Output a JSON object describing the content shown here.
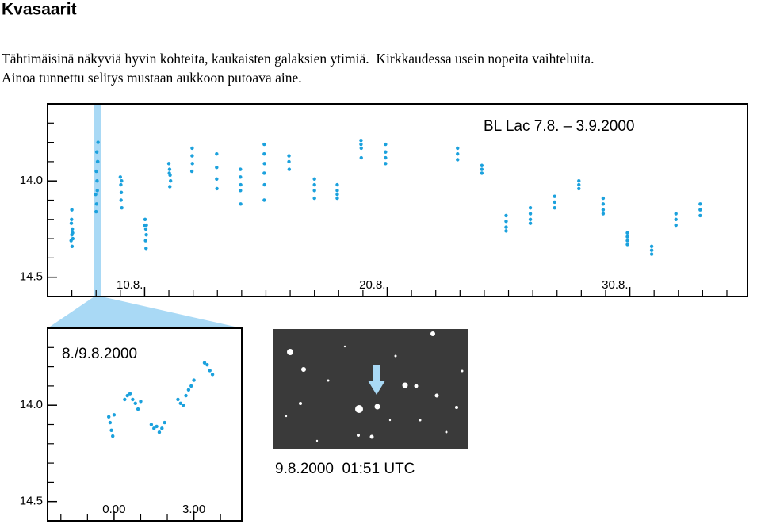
{
  "title": "Kvasaarit",
  "text_lines": [
    "Tähtimäisinä näkyviä hyvin kohteita, kaukaisten galaksien ytimiä.  Kirkkaudessa usein nopeita vaihteluita.",
    "Ainoa tunnettu selitys mustaan aukkoon putoava aine."
  ],
  "image_caption": "9.8.2000  01:51 UTC",
  "chart_data": [
    {
      "type": "scatter",
      "annotation": "BL Lac 7.8. – 3.9.2000",
      "color": "#1ba1dd",
      "xlim": [
        6,
        34.85
      ],
      "ylim": [
        14.6,
        13.6
      ],
      "xticks": [
        {
          "value": 10,
          "label": "10.8."
        },
        {
          "value": 20,
          "label": "20.8."
        },
        {
          "value": 30,
          "label": "30.8."
        }
      ],
      "xminorticks": [
        7,
        8,
        9,
        11,
        12,
        13,
        14,
        15,
        16,
        17,
        18,
        19,
        21,
        22,
        23,
        24,
        25,
        26,
        27,
        28,
        29,
        31,
        32,
        33,
        34
      ],
      "yticks": [
        {
          "value": 14,
          "label": "14.0"
        },
        14.5
      ],
      "yminorticks": [
        13.7,
        13.8,
        13.9,
        14.1,
        14.2,
        14.3,
        14.4
      ],
      "x": [
        7.0,
        6.98,
        7.02,
        7.0,
        7.04,
        6.97,
        7.01,
        7.03,
        6.99,
        8.0,
        8.02,
        7.98,
        8.04,
        8.01,
        8.06,
        8.03,
        8.08,
        8.07,
        8.05,
        9.0,
        9.02,
        9.04,
        9.03,
        9.06,
        9.05,
        10.02,
        10.05,
        10.07,
        10.04,
        10.06,
        10.0,
        10.07,
        11.0,
        11.03,
        11.05,
        11.07,
        11.04,
        11.02,
        11.96,
        11.96,
        11.97,
        11.95,
        12.97,
        12.97,
        12.97,
        12.98,
        13.95,
        13.95,
        13.96,
        13.95,
        13.96,
        14.93,
        14.93,
        14.94,
        14.93,
        14.94,
        14.93,
        15.95,
        15.95,
        15.96,
        17.0,
        17.0,
        17.0,
        17.0,
        17.94,
        17.94,
        17.94,
        17.94,
        18.92,
        18.92,
        18.93,
        18.93,
        19.93,
        19.93,
        19.93,
        19.93,
        22.9,
        22.9,
        22.9,
        23.9,
        23.9,
        23.9,
        24.9,
        24.9,
        24.9,
        24.9,
        25.9,
        25.9,
        25.9,
        25.9,
        26.9,
        26.9,
        26.9,
        27.9,
        27.9,
        27.9,
        28.9,
        28.9,
        28.9,
        28.9,
        29.9,
        29.9,
        29.9,
        29.9,
        30.9,
        30.9,
        30.9,
        31.9,
        31.9,
        31.9,
        32.9,
        32.9,
        32.9
      ],
      "values": [
        14.15,
        14.22,
        14.25,
        14.28,
        14.3,
        14.31,
        14.34,
        14.27,
        14.2,
        14.16,
        14.12,
        14.07,
        14.0,
        13.95,
        13.9,
        13.85,
        13.8,
        13.9,
        14.05,
        13.98,
        14.02,
        14.06,
        14.1,
        14.14,
        14.0,
        14.2,
        14.25,
        14.28,
        14.31,
        14.35,
        14.23,
        14.23,
        13.91,
        13.94,
        13.97,
        14.0,
        14.03,
        13.96,
        13.83,
        13.87,
        13.91,
        13.95,
        13.86,
        13.93,
        13.99,
        14.04,
        13.94,
        13.98,
        14.02,
        14.05,
        14.12,
        13.81,
        13.86,
        13.91,
        13.96,
        14.02,
        14.1,
        13.87,
        13.9,
        13.94,
        13.99,
        14.02,
        14.05,
        14.09,
        14.02,
        14.05,
        14.07,
        14.09,
        13.79,
        13.81,
        13.83,
        13.88,
        13.81,
        13.85,
        13.88,
        13.91,
        13.83,
        13.86,
        13.89,
        13.92,
        13.94,
        13.96,
        14.18,
        14.21,
        14.24,
        14.26,
        14.14,
        14.17,
        14.2,
        14.22,
        14.08,
        14.11,
        14.14,
        14.0,
        14.02,
        14.04,
        14.09,
        14.12,
        14.15,
        14.17,
        14.27,
        14.29,
        14.31,
        14.33,
        14.34,
        14.36,
        14.38,
        14.17,
        14.2,
        14.23,
        14.12,
        14.15,
        14.18
      ]
    },
    {
      "type": "scatter",
      "annotation": "8./9.8.2000",
      "color": "#1ba1dd",
      "xlim": [
        -2.5,
        4.8
      ],
      "ylim": [
        14.6,
        13.6
      ],
      "xticks": [
        {
          "value": 0,
          "label": "0.00"
        },
        {
          "value": 3,
          "label": "3.00"
        }
      ],
      "xminorticks": [
        -2,
        -1,
        1,
        2,
        4
      ],
      "yticks": [
        {
          "value": 14,
          "label": "14.0"
        },
        14.5
      ],
      "yminorticks": [
        13.7,
        13.8,
        13.9,
        14.1,
        14.2,
        14.3,
        14.4
      ],
      "x": [
        -0.2,
        -0.15,
        -0.1,
        -0.05,
        0.0,
        0.4,
        0.5,
        0.6,
        0.7,
        0.8,
        0.9,
        1.0,
        1.4,
        1.5,
        1.6,
        1.7,
        1.8,
        1.9,
        2.4,
        2.5,
        2.6,
        2.7,
        2.8,
        2.9,
        3.0,
        3.4,
        3.5,
        3.6,
        3.7
      ],
      "values": [
        14.06,
        14.09,
        14.13,
        14.16,
        14.05,
        13.97,
        13.95,
        13.94,
        13.97,
        13.99,
        14.02,
        13.98,
        14.1,
        14.12,
        14.11,
        14.14,
        14.12,
        14.09,
        13.97,
        13.99,
        14.0,
        13.95,
        13.92,
        13.9,
        13.87,
        13.78,
        13.79,
        13.82,
        13.84
      ]
    }
  ]
}
